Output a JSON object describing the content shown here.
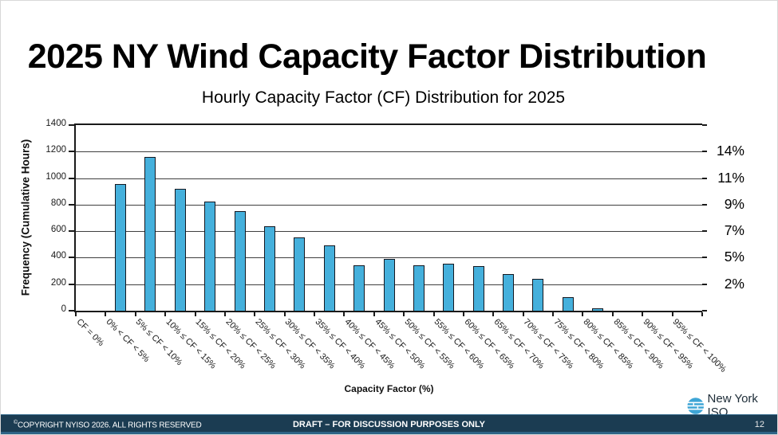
{
  "slide": {
    "title": "2025 NY Wind Capacity Factor Distribution"
  },
  "chart_data": {
    "type": "bar",
    "title": "Hourly Capacity Factor (CF) Distribution for 2025",
    "xlabel": "Capacity Factor (%)",
    "ylabel": "Frequency (Cumulative Hours)",
    "ylim": [
      0,
      1400
    ],
    "ytick_step": 200,
    "grid": true,
    "legend_position": "none",
    "bar_color": "#45b0dc",
    "bar_edge_color": "#141821",
    "categories": [
      "CF = 0%",
      "0% < CF < 5%",
      "5% ≤ CF < 10%",
      "10% ≤ CF < 15%",
      "15% ≤ CF < 20%",
      "20% ≤ CF < 25%",
      "25% ≤ CF < 30%",
      "30% ≤ CF < 35%",
      "35% ≤ CF < 40%",
      "40% ≤ CF < 45%",
      "45% ≤ CF < 50%",
      "50% ≤ CF < 55%",
      "55% ≤ CF < 60%",
      "60% ≤ CF < 65%",
      "65% ≤ CF < 70%",
      "70% ≤ CF < 75%",
      "75% ≤ CF < 80%",
      "80% ≤ CF < 85%",
      "85% ≤ CF < 90%",
      "90% ≤ CF < 95%",
      "95% ≤ CF < 100%"
    ],
    "values": [
      0,
      955,
      1160,
      920,
      825,
      750,
      640,
      550,
      490,
      340,
      390,
      340,
      355,
      335,
      275,
      240,
      105,
      20,
      0,
      0,
      0
    ],
    "right_axis_labels": [
      {
        "label": "14%",
        "at": 1200
      },
      {
        "label": "11%",
        "at": 1000
      },
      {
        "label": "9%",
        "at": 800
      },
      {
        "label": "7%",
        "at": 600
      },
      {
        "label": "5%",
        "at": 400
      },
      {
        "label": "2%",
        "at": 200
      }
    ]
  },
  "footer": {
    "copyright_symbol": "©",
    "copyright_text": "COPYRIGHT NYISO 2026. ALL RIGHTS RESERVED",
    "draft_notice": "DRAFT – FOR DISCUSSION PURPOSES ONLY",
    "page_number": "12",
    "logo_text": "New York ISO"
  }
}
